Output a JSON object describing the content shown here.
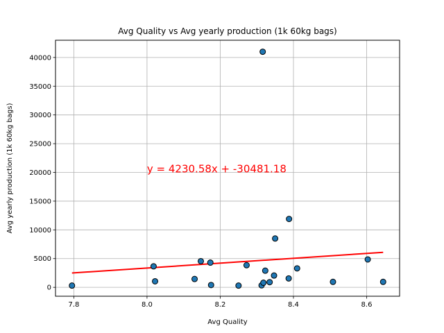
{
  "chart_data": {
    "type": "scatter",
    "title": "Avg Quality vs Avg yearly production (1k 60kg bags)",
    "xlabel": "Avg Quality",
    "ylabel": "Avg yearly production (1k 60kg bags)",
    "xlim": [
      7.75,
      8.69
    ],
    "ylim": [
      -1550,
      43000
    ],
    "xticks": [
      7.8,
      8.0,
      8.2,
      8.4,
      8.6
    ],
    "xtick_labels": [
      "7.8",
      "8.0",
      "8.2",
      "8.4",
      "8.6"
    ],
    "yticks": [
      0,
      5000,
      10000,
      15000,
      20000,
      25000,
      30000,
      35000,
      40000
    ],
    "ytick_labels": [
      "0",
      "5000",
      "10000",
      "15000",
      "20000",
      "25000",
      "30000",
      "35000",
      "40000"
    ],
    "grid": true,
    "points": [
      {
        "x": 7.795,
        "y": 300
      },
      {
        "x": 8.018,
        "y": 3650
      },
      {
        "x": 8.022,
        "y": 1050
      },
      {
        "x": 8.13,
        "y": 1450
      },
      {
        "x": 8.147,
        "y": 4550
      },
      {
        "x": 8.173,
        "y": 4300
      },
      {
        "x": 8.175,
        "y": 400
      },
      {
        "x": 8.25,
        "y": 300
      },
      {
        "x": 8.272,
        "y": 3850
      },
      {
        "x": 8.313,
        "y": 350
      },
      {
        "x": 8.316,
        "y": 41000
      },
      {
        "x": 8.318,
        "y": 800
      },
      {
        "x": 8.323,
        "y": 2900
      },
      {
        "x": 8.335,
        "y": 900
      },
      {
        "x": 8.347,
        "y": 2050
      },
      {
        "x": 8.35,
        "y": 8500
      },
      {
        "x": 8.387,
        "y": 1550
      },
      {
        "x": 8.388,
        "y": 11900
      },
      {
        "x": 8.41,
        "y": 3300
      },
      {
        "x": 8.508,
        "y": 950
      },
      {
        "x": 8.603,
        "y": 4850
      },
      {
        "x": 8.645,
        "y": 950
      }
    ],
    "fit_line": {
      "slope": 4230.58,
      "intercept": -30481.18,
      "x_range": [
        7.795,
        8.645
      ],
      "color": "#ff0000"
    },
    "annotation": {
      "text": "y = 4230.58x + -30481.18",
      "x": 8.0,
      "y": 20000,
      "color": "#ff0000"
    },
    "marker_color": "#1f77b4",
    "marker_edge": "#000000"
  }
}
